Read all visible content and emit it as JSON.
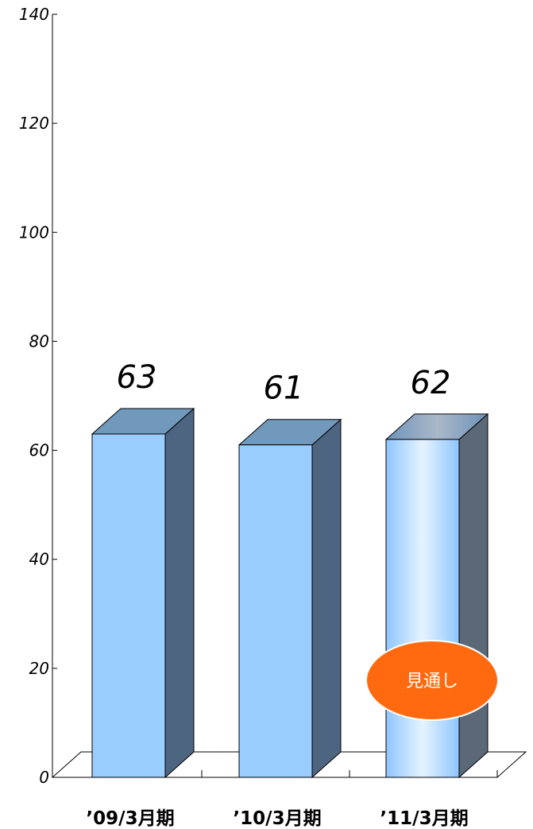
{
  "chart_data": {
    "type": "bar",
    "categories": [
      "’09/3月期",
      "’10/3月期",
      "’11/3月期"
    ],
    "values": [
      63,
      61,
      62
    ],
    "ylim": [
      0,
      140
    ],
    "yticks": [
      0,
      20,
      40,
      60,
      80,
      100,
      120,
      140
    ],
    "grid": false,
    "projected_index": 2
  },
  "badge": {
    "label": "見通し",
    "color": "#ff6a10"
  },
  "colors": {
    "bar_front": "#99ccff",
    "bar_top": "#7099bb",
    "bar_side": "#4d6580",
    "proj_side": "#5a6878"
  }
}
